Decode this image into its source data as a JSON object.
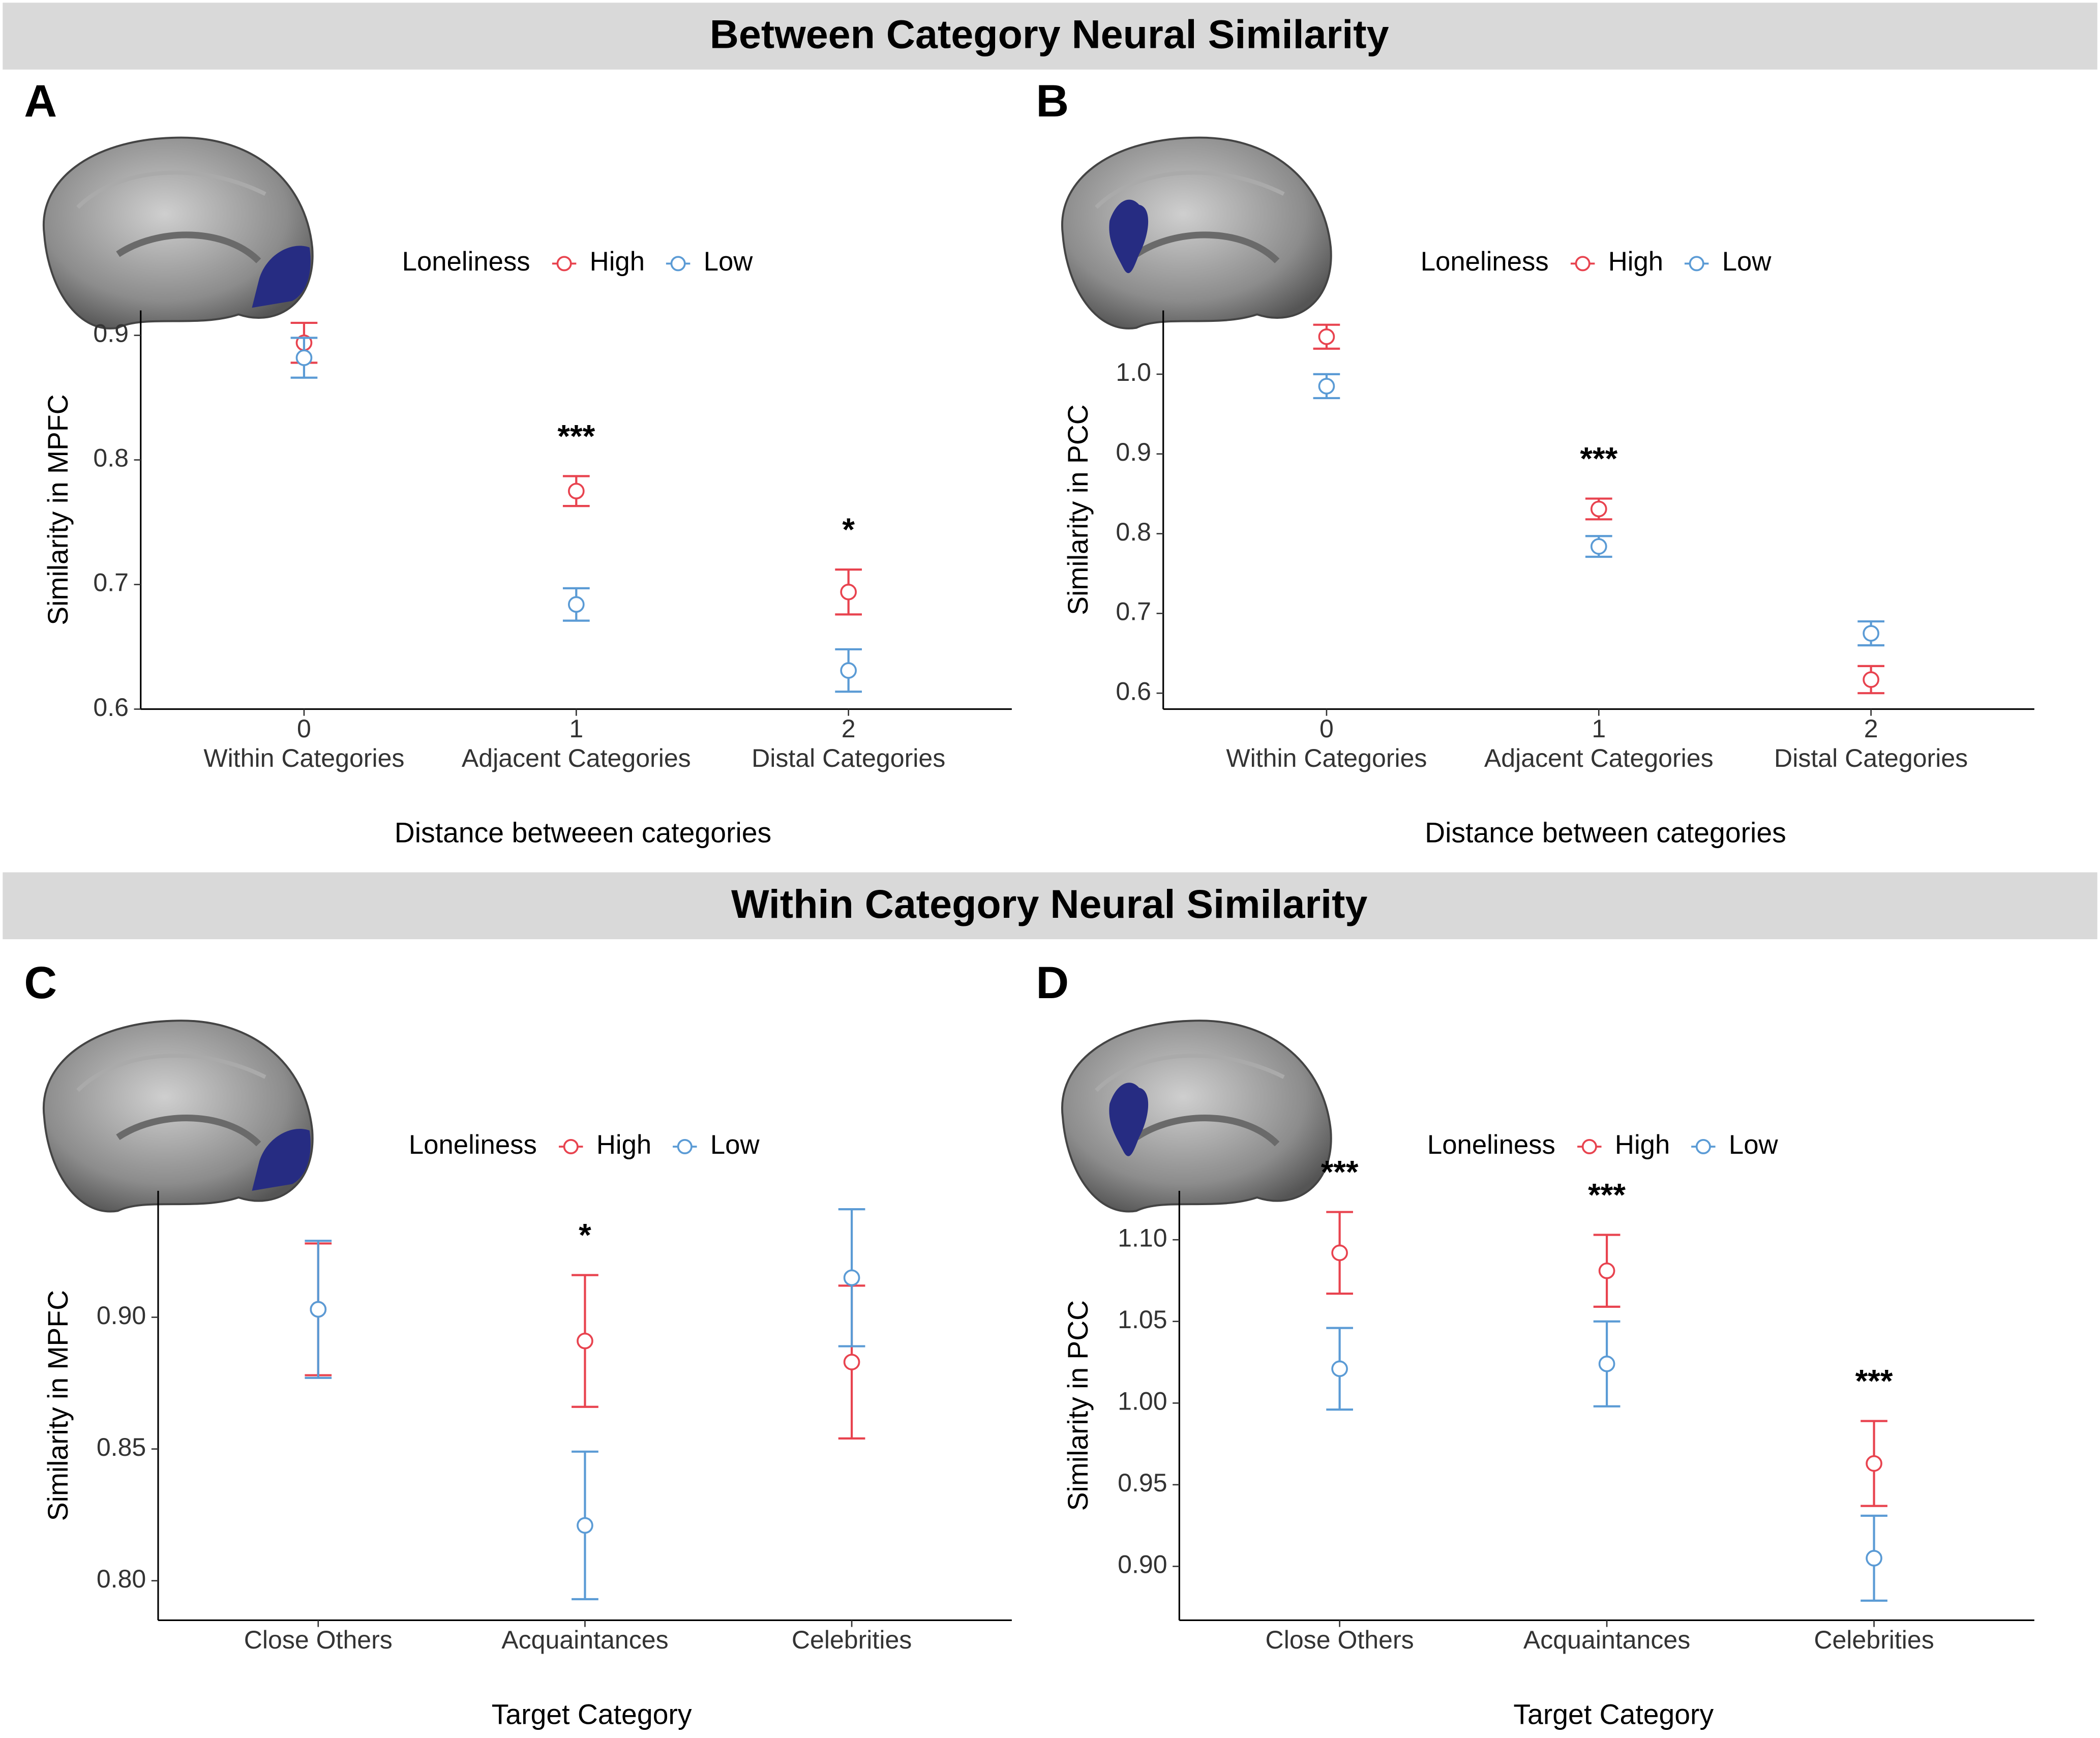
{
  "headers": [
    "Between Category Neural Similarity",
    "Within Category Neural Similarity"
  ],
  "chart_data": [
    {
      "type": "errorbar",
      "panel": "A",
      "x_label": "Distance betweeen categories",
      "y_label": "Similarity in MPFC",
      "legend_title": "Loneliness",
      "xticks": [
        0,
        1,
        2
      ],
      "xlim": [
        -0.6,
        2.6
      ],
      "categories": [
        "Within Categories",
        "Adjacent Categories",
        "Distal Categories"
      ],
      "ylim": [
        0.6,
        0.92
      ],
      "yticks": [
        0.6,
        0.7,
        0.8,
        0.9
      ],
      "annotations": [
        null,
        "***",
        "*"
      ],
      "series": [
        {
          "name": "High",
          "color": "#e8434f",
          "values": [
            0.894,
            0.775,
            0.694
          ],
          "errors": [
            0.016,
            0.012,
            0.018
          ]
        },
        {
          "name": "Low",
          "color": "#5b9bd5",
          "values": [
            0.882,
            0.684,
            0.631
          ],
          "errors": [
            0.016,
            0.013,
            0.017
          ]
        }
      ]
    },
    {
      "type": "errorbar",
      "panel": "B",
      "x_label": "Distance between categories",
      "y_label": "Similarity in PCC",
      "legend_title": "Loneliness",
      "xticks": [
        0,
        1,
        2
      ],
      "xlim": [
        -0.6,
        2.6
      ],
      "categories": [
        "Within Categories",
        "Adjacent Categories",
        "Distal Categories"
      ],
      "ylim": [
        0.58,
        1.08
      ],
      "yticks": [
        0.6,
        0.7,
        0.8,
        0.9,
        {
          "value": 1,
          "label": "1.0"
        }
      ],
      "annotations": [
        null,
        "***",
        null
      ],
      "series": [
        {
          "name": "High",
          "color": "#e8434f",
          "values": [
            1.047,
            0.831,
            0.617
          ],
          "errors": [
            0.015,
            0.013,
            0.017
          ]
        },
        {
          "name": "Low",
          "color": "#5b9bd5",
          "values": [
            0.985,
            0.784,
            0.675
          ],
          "errors": [
            0.015,
            0.013,
            0.015
          ]
        }
      ]
    },
    {
      "type": "errorbar",
      "panel": "C",
      "x_label": "Target Category",
      "y_label": "Similarity in MPFC",
      "legend_title": "Loneliness",
      "xlim": [
        -0.6,
        2.6
      ],
      "categories": [
        "Close Others",
        "Acquaintances",
        "Celebrities"
      ],
      "ylim": [
        0.785,
        0.948
      ],
      "yticks": [
        {
          "value": 0.8,
          "label": "0.80"
        },
        {
          "value": 0.85,
          "label": "0.85"
        },
        {
          "value": 0.9,
          "label": "0.90"
        }
      ],
      "annotations": [
        null,
        "*",
        null
      ],
      "series": [
        {
          "name": "High",
          "color": "#e8434f",
          "values": [
            0.903,
            0.891,
            0.883
          ],
          "errors": [
            0.025,
            0.025,
            0.029
          ]
        },
        {
          "name": "Low",
          "color": "#5b9bd5",
          "values": [
            0.903,
            0.821,
            0.915
          ],
          "errors": [
            0.026,
            0.028,
            0.026
          ]
        }
      ]
    },
    {
      "type": "errorbar",
      "panel": "D",
      "x_label": "Target Category",
      "y_label": "Similarity in PCC",
      "legend_title": "Loneliness",
      "xlim": [
        -0.6,
        2.6
      ],
      "categories": [
        "Close Others",
        "Acquaintances",
        "Celebrities"
      ],
      "ylim": [
        0.867,
        1.13
      ],
      "yticks": [
        {
          "value": 0.9,
          "label": "0.90"
        },
        {
          "value": 0.95,
          "label": "0.95"
        },
        {
          "value": 1,
          "label": "1.00"
        },
        {
          "value": 1.05,
          "label": "1.05"
        },
        {
          "value": 1.1,
          "label": "1.10"
        }
      ],
      "annotations": [
        "***",
        "***",
        "***"
      ],
      "series": [
        {
          "name": "High",
          "color": "#e8434f",
          "values": [
            1.092,
            1.081,
            0.963
          ],
          "errors": [
            0.025,
            0.022,
            0.026
          ]
        },
        {
          "name": "Low",
          "color": "#5b9bd5",
          "values": [
            1.021,
            1.024,
            0.905
          ],
          "errors": [
            0.025,
            0.026,
            0.026
          ]
        }
      ]
    }
  ]
}
